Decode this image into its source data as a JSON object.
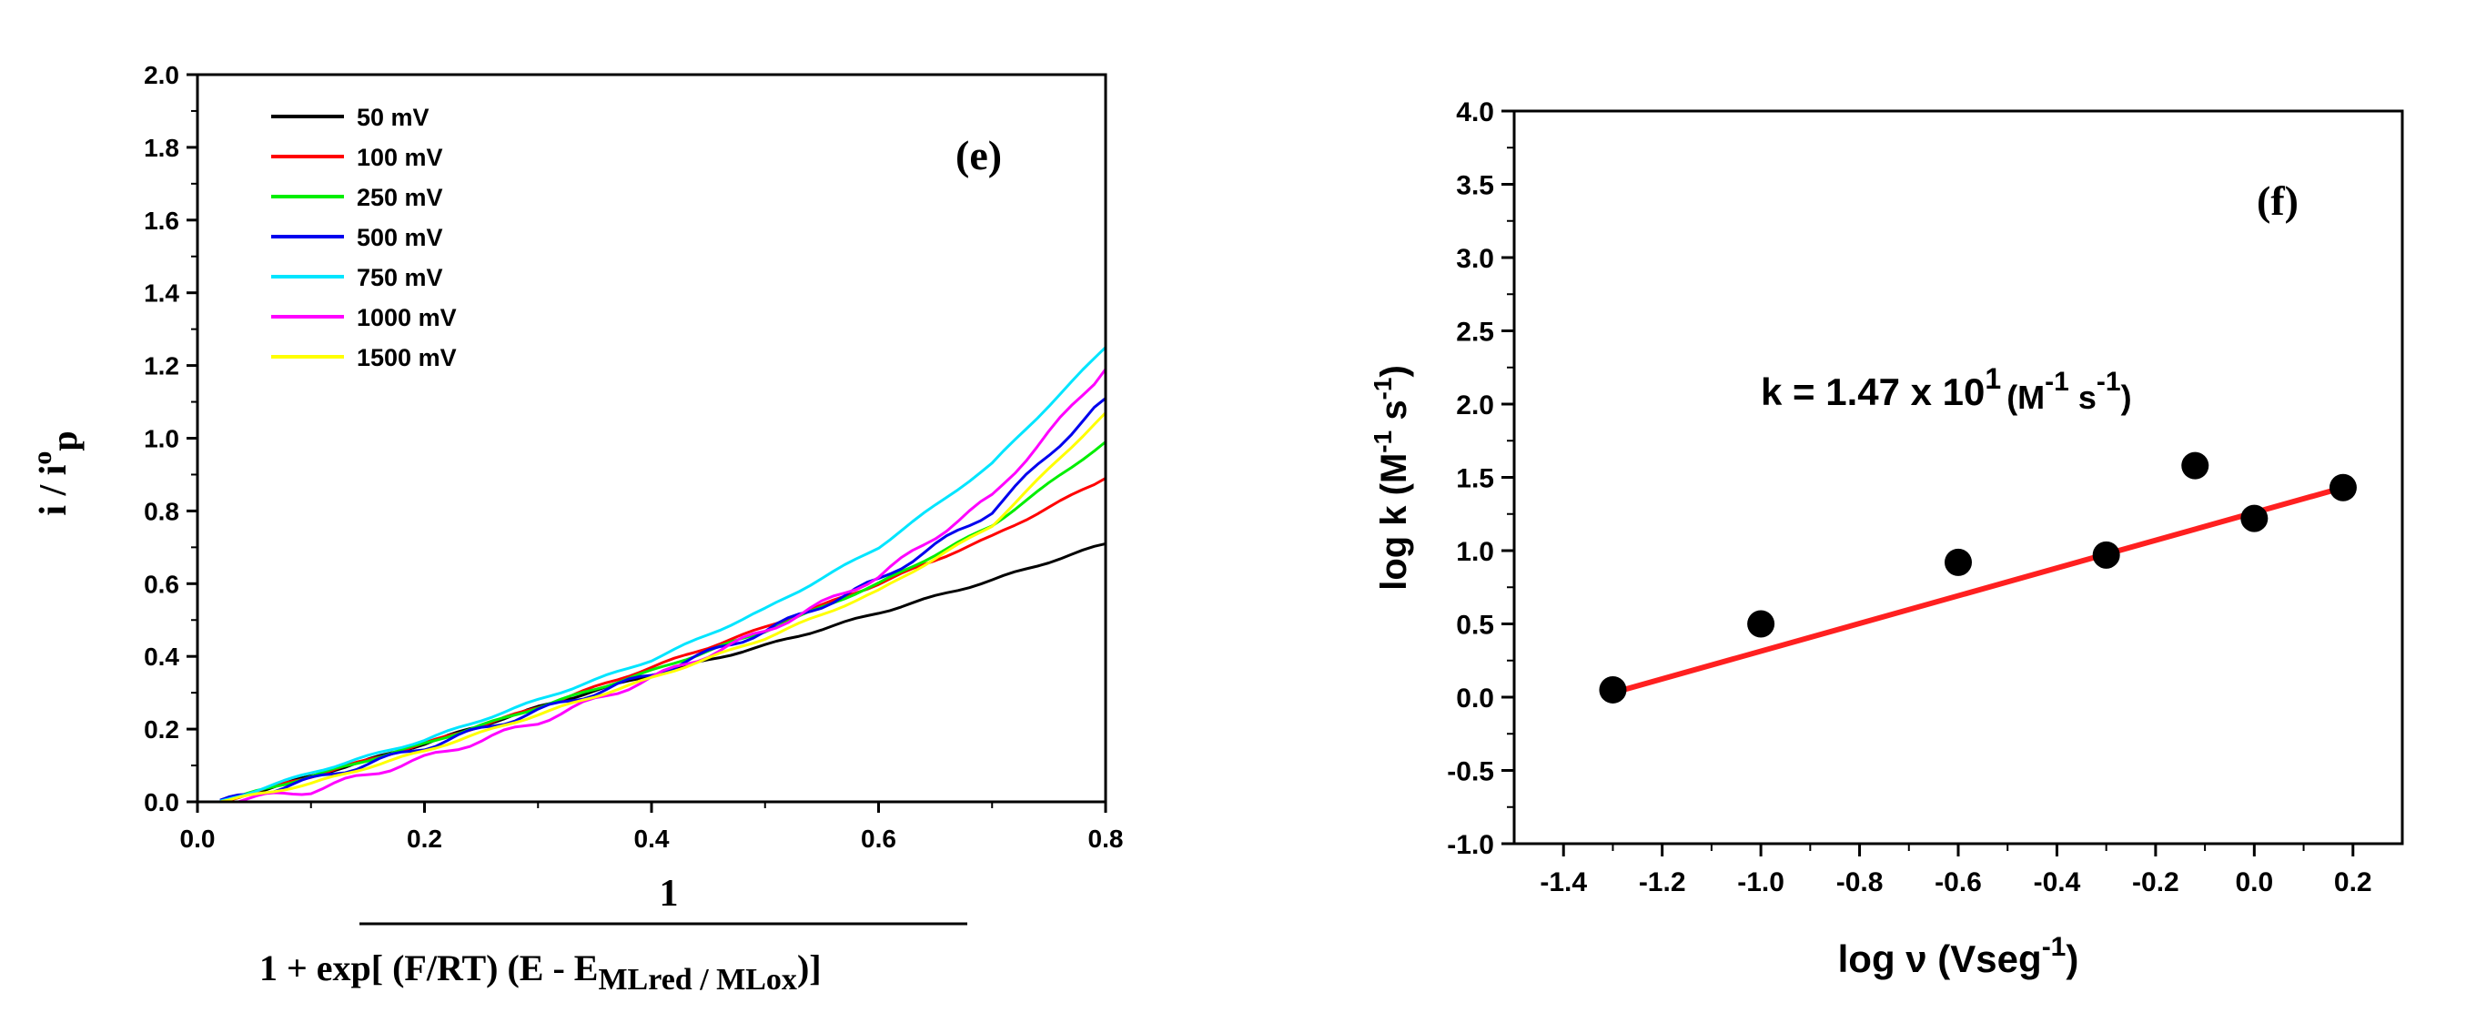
{
  "chart_data": [
    {
      "type": "line",
      "panel_label": "(e)",
      "ylabel": {
        "main": "i / i",
        "sup": "o",
        "sub": "p"
      },
      "xlabel_numerator": "1",
      "xlabel_denominator": {
        "main": "1 + exp[ (F/RT) (E - E",
        "sub": "MLred / MLox",
        "tail": ")]"
      },
      "xlim": [
        0,
        0.8
      ],
      "ylim": [
        0,
        2.0
      ],
      "xticks": [
        "0.0",
        "0.2",
        "0.4",
        "0.6",
        "0.8"
      ],
      "yticks": [
        "0.0",
        "0.2",
        "0.4",
        "0.6",
        "0.8",
        "1.0",
        "1.2",
        "1.4",
        "1.6",
        "1.8",
        "2.0"
      ],
      "x": [
        0.02,
        0.1,
        0.2,
        0.3,
        0.4,
        0.5,
        0.6,
        0.7,
        0.8
      ],
      "series": [
        {
          "name": "50 mV",
          "color": "#000000",
          "values": [
            0.0,
            0.07,
            0.16,
            0.26,
            0.35,
            0.43,
            0.52,
            0.61,
            0.71
          ]
        },
        {
          "name": "100 mV",
          "color": "#ff0000",
          "values": [
            0.0,
            0.07,
            0.16,
            0.26,
            0.37,
            0.48,
            0.6,
            0.73,
            0.89
          ]
        },
        {
          "name": "250 mV",
          "color": "#00ee00",
          "values": [
            0.0,
            0.07,
            0.16,
            0.26,
            0.36,
            0.47,
            0.6,
            0.76,
            0.99
          ]
        },
        {
          "name": "500 mV",
          "color": "#0000ee",
          "values": [
            0.0,
            0.06,
            0.15,
            0.25,
            0.35,
            0.47,
            0.61,
            0.8,
            1.11
          ]
        },
        {
          "name": "750 mV",
          "color": "#00e5ff",
          "values": [
            0.0,
            0.08,
            0.17,
            0.28,
            0.39,
            0.53,
            0.7,
            0.93,
            1.25
          ]
        },
        {
          "name": "1000 mV",
          "color": "#ff00ff",
          "values": [
            0.0,
            0.03,
            0.12,
            0.22,
            0.34,
            0.47,
            0.62,
            0.84,
            1.19
          ]
        },
        {
          "name": "1500 mV",
          "color": "#ffff00",
          "values": [
            0.0,
            0.05,
            0.14,
            0.24,
            0.34,
            0.45,
            0.58,
            0.76,
            1.07
          ]
        }
      ]
    },
    {
      "type": "scatter",
      "panel_label": "(f)",
      "annotation": {
        "text": "k = 1.47 x 10",
        "exp": "1",
        "unit_open": "(M",
        "unit_exp1": "-1",
        "unit_mid": " s",
        "unit_exp2": "-1",
        "unit_close": ")"
      },
      "ylabel": {
        "a": "log k (M",
        "sup1": "-1",
        "b": " s",
        "sup2": "-1",
        "c": ")"
      },
      "xlabel": {
        "a": "log ν (Vseg",
        "sup": "-1",
        "b": ")"
      },
      "xlim": [
        -1.5,
        0.3
      ],
      "ylim": [
        -1.0,
        4.0
      ],
      "xticks": [
        "-1.4",
        "-1.2",
        "-1.0",
        "-0.8",
        "-0.6",
        "-0.4",
        "-0.2",
        "0.0",
        "0.2"
      ],
      "yticks": [
        "-1.0",
        "-0.5",
        "0.0",
        "0.5",
        "1.0",
        "1.5",
        "2.0",
        "2.5",
        "3.0",
        "3.5",
        "4.0"
      ],
      "points": {
        "x": [
          -1.3,
          -1.0,
          -0.6,
          -0.3,
          -0.12,
          0.0,
          0.18
        ],
        "y": [
          0.05,
          0.5,
          0.92,
          0.97,
          1.58,
          1.22,
          1.43
        ]
      },
      "fit": {
        "x": [
          -1.3,
          0.18
        ],
        "y": [
          0.03,
          1.43
        ],
        "color": "#ff2020"
      }
    }
  ]
}
